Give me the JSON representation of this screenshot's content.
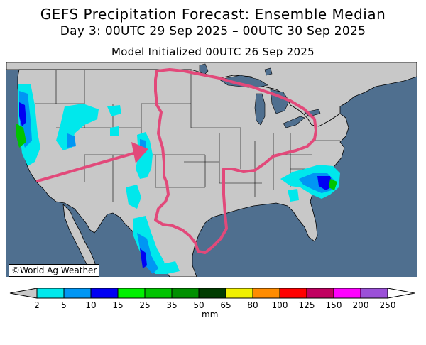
{
  "title": "GEFS Precipitation Forecast: Ensemble Median",
  "subtitle": "Day 3: 00UTC 29 Sep 2025 – 00UTC 30 Sep 2025",
  "init": "Model Initialized 00UTC 26 Sep 2025",
  "credit": "©World Ag Weather",
  "units": "mm",
  "colors": {
    "ocean": "#4f6f8f",
    "land": "#c8c8c8",
    "highlight": "#e2497a"
  },
  "legend": {
    "levels": [
      "2",
      "5",
      "10",
      "15",
      "25",
      "35",
      "50",
      "65",
      "80",
      "100",
      "125",
      "150",
      "200",
      "250"
    ],
    "under_color": "#c8c8c8",
    "colors": [
      "#00e8ec",
      "#0096f4",
      "#0000f4",
      "#00f000",
      "#00c400",
      "#009000",
      "#003c00",
      "#f0f000",
      "#ff8c00",
      "#ff0000",
      "#c00060",
      "#ff00ff",
      "#9b50d8"
    ],
    "over_color": "#ffffff"
  },
  "annotations": [
    "outlined-region-central-us",
    "arrow-pointing-to-colorado"
  ]
}
